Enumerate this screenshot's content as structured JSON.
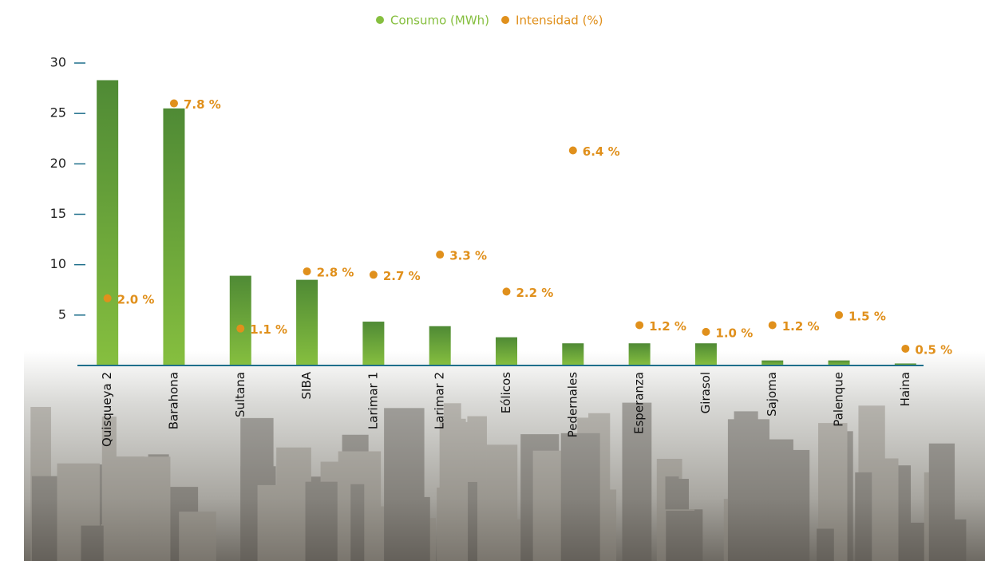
{
  "chart_data": {
    "type": "bar",
    "categories": [
      "Quisqueya 2",
      "Barahona",
      "Sultana",
      "SIBA",
      "Larimar 1",
      "Larimar 2",
      "Eólicos",
      "Pedernales",
      "Esperanza",
      "Girasol",
      "Sajoma",
      "Palenque",
      "Haina"
    ],
    "series": [
      {
        "name": "Consumo (MWh)",
        "color": "#86bf3f",
        "values": [
          28.3,
          25.5,
          8.9,
          8.5,
          4.35,
          3.9,
          2.8,
          2.2,
          2.2,
          2.2,
          0.5,
          0.5,
          0.2
        ]
      },
      {
        "name": "Intensidad (%)",
        "color": "#e0901c",
        "type": "scatter",
        "axis": "y2",
        "values": [
          2.0,
          7.8,
          1.1,
          2.8,
          2.7,
          3.3,
          2.2,
          6.4,
          1.2,
          1.0,
          1.2,
          1.5,
          0.5
        ],
        "value_labels": [
          "2.0 %",
          "7.8 %",
          "1.1 %",
          "2.8 %",
          "2.7 %",
          "3.3 %",
          "2.2 %",
          "6.4 %",
          "1.2 %",
          "1.0 %",
          "1.2 %",
          "1.5 %",
          "0.5 %"
        ]
      }
    ],
    "ylim": [
      0,
      30
    ],
    "yticks": [
      5,
      10,
      15,
      20,
      25,
      30
    ],
    "y2lim": [
      0,
      9
    ],
    "axis_color": "#1f6f8b"
  }
}
